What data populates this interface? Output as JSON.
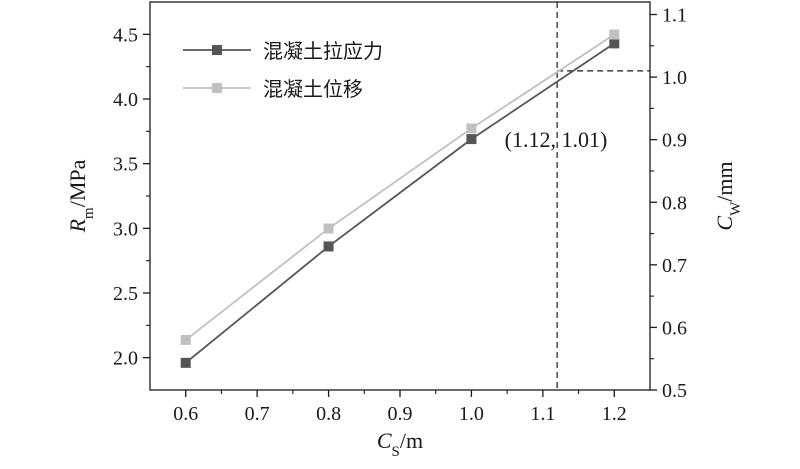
{
  "chart_data": {
    "type": "line",
    "x_axis": {
      "title": "C",
      "title_sub": "S",
      "title_unit": "/m",
      "range": [
        0.55,
        1.25
      ],
      "ticks": [
        0.6,
        0.7,
        0.8,
        0.9,
        1.0,
        1.1,
        1.2
      ],
      "tick_labels": [
        "0.6",
        "0.7",
        "0.8",
        "0.9",
        "1.0",
        "1.1",
        "1.2"
      ]
    },
    "y_left": {
      "title": "R",
      "title_sub": "m",
      "title_unit": "/MPa",
      "range": [
        1.75,
        4.75
      ],
      "ticks": [
        2.0,
        2.5,
        3.0,
        3.5,
        4.0,
        4.5
      ],
      "tick_labels": [
        "2.0",
        "2.5",
        "3.0",
        "3.5",
        "4.0",
        "4.5"
      ]
    },
    "y_right": {
      "title": "C",
      "title_sub": "W",
      "title_unit": "/mm",
      "range": [
        0.5,
        1.12
      ],
      "ticks": [
        0.5,
        0.6,
        0.7,
        0.8,
        0.9,
        1.0,
        1.1
      ],
      "tick_labels": [
        "0.5",
        "0.6",
        "0.7",
        "0.8",
        "0.9",
        "1.0",
        "1.1"
      ]
    },
    "series": [
      {
        "name": "混凝土拉应力",
        "axis": "left",
        "color": "#555555",
        "x": [
          0.6,
          0.8,
          1.0,
          1.2
        ],
        "y": [
          1.96,
          2.86,
          3.69,
          4.43
        ]
      },
      {
        "name": "混凝土位移",
        "axis": "right",
        "color": "#c0c0c0",
        "x": [
          0.6,
          0.8,
          1.0,
          1.2
        ],
        "y": [
          0.58,
          0.758,
          0.918,
          1.068
        ]
      }
    ],
    "intersection": {
      "x": 1.12,
      "y_right": 1.01,
      "label": "(1.12, 1.01)"
    },
    "legend_position": "top-left",
    "grid": false
  }
}
